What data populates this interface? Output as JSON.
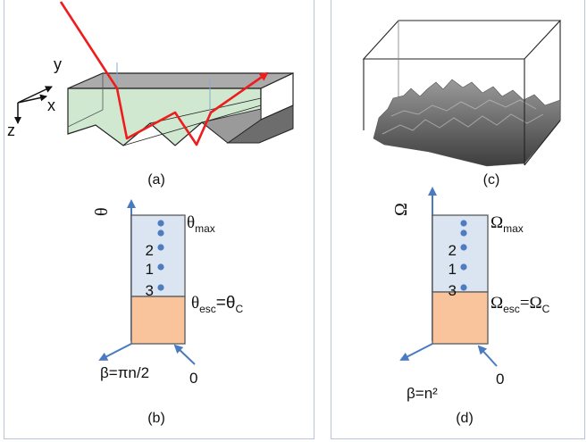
{
  "panel_a": {
    "caption": "(a)",
    "axes": {
      "y": "y",
      "x": "x",
      "z": "z"
    }
  },
  "panel_b": {
    "caption": "(b)",
    "vertical_axis": "θ",
    "top_label": {
      "symbol": "θ",
      "sub": "max"
    },
    "levels": [
      "2",
      "1",
      "3"
    ],
    "escape_label": {
      "symbol": "θ",
      "sub1": "esc",
      "eq": "=θ",
      "sub2": "C"
    },
    "beta_label": "β=πn/2",
    "zero_label": "0"
  },
  "panel_c": {
    "caption": "(c)"
  },
  "panel_d": {
    "caption": "(d)",
    "vertical_axis": "Ω",
    "top_label": {
      "symbol": "Ω",
      "sub": "max"
    },
    "levels": [
      "2",
      "1",
      "3"
    ],
    "escape_label": {
      "symbol": "Ω",
      "sub1": "esc",
      "eq": "=Ω",
      "sub2": "C"
    },
    "beta_label": "β=n²",
    "zero_label": "0"
  },
  "colors": {
    "frame": "#b7c6d9",
    "ray": "#ee1c1c",
    "green_face": "#cfe8cf",
    "trapped_region": "#dbe5f1",
    "escape_region": "#f9c49b",
    "axis_arrow": "#4a7bbf",
    "dot": "#4f7cc0"
  }
}
